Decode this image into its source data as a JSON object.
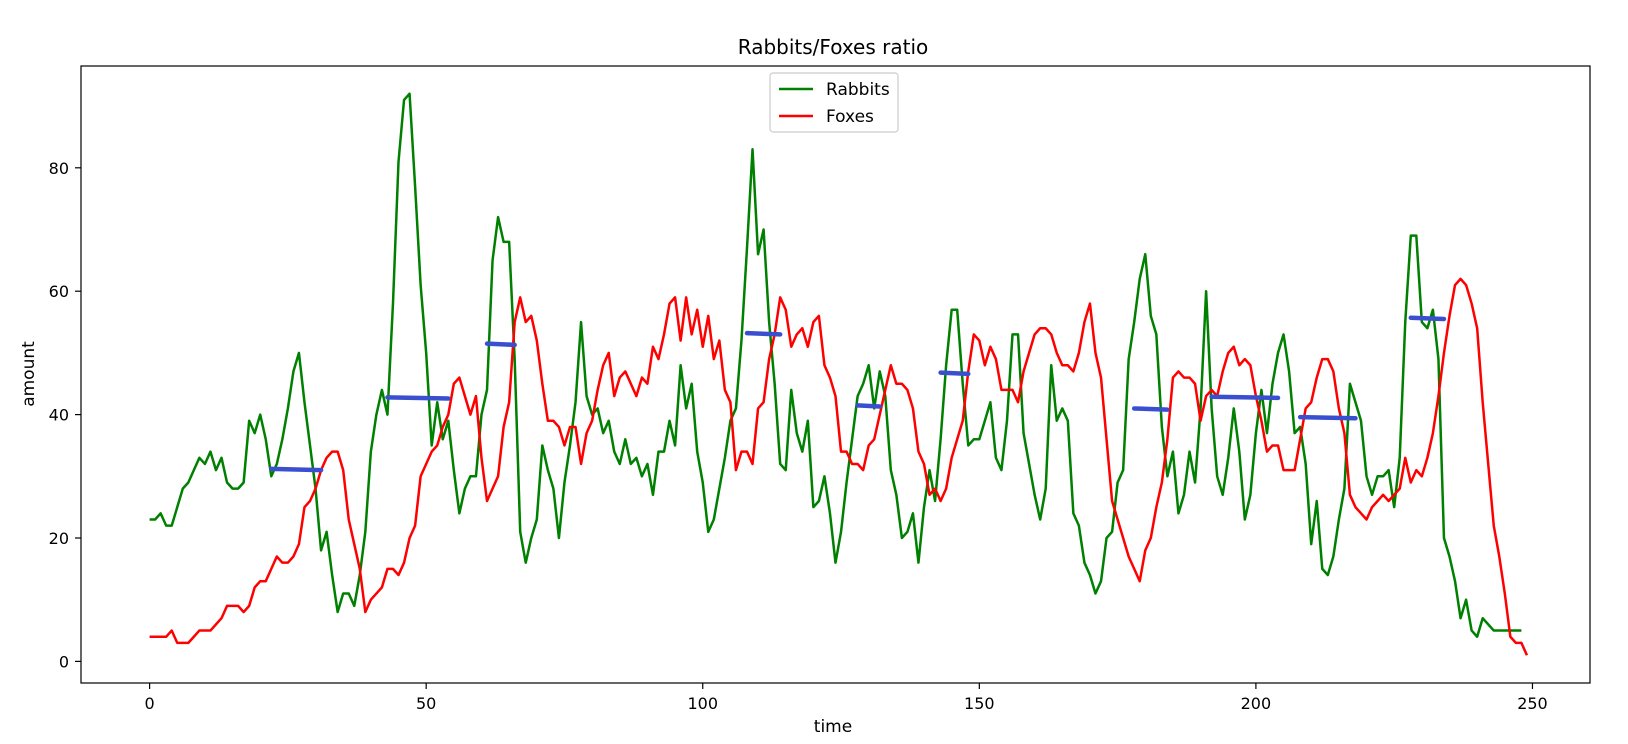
{
  "chart_data": {
    "type": "line",
    "title": "Rabbits/Foxes ratio",
    "xlabel": "time",
    "ylabel": "amount",
    "xlim": [
      -12.4,
      260.4
    ],
    "ylim": [
      -3.5,
      96.5
    ],
    "xticks": [
      0,
      50,
      100,
      150,
      200,
      250
    ],
    "yticks": [
      0,
      20,
      40,
      60,
      80
    ],
    "grid": false,
    "legend_placement": "upper center",
    "series": [
      {
        "name": "Rabbits",
        "color": "#008000",
        "values": [
          23,
          23,
          24,
          22,
          22,
          25,
          28,
          29,
          31,
          33,
          32,
          34,
          31,
          33,
          29,
          28,
          28,
          29,
          39,
          37,
          40,
          36,
          30,
          32,
          36,
          41,
          47,
          50,
          42,
          35,
          28,
          18,
          21,
          14,
          8,
          11,
          11,
          9,
          14,
          21,
          34,
          40,
          44,
          40,
          58,
          81,
          91,
          92,
          77,
          61,
          50,
          35,
          42,
          36,
          39,
          31,
          24,
          28,
          30,
          30,
          40,
          44,
          65,
          72,
          68,
          68,
          49,
          21,
          16,
          20,
          23,
          35,
          31,
          28,
          20,
          29,
          35,
          42,
          55,
          43,
          40,
          41,
          37,
          39,
          34,
          32,
          36,
          32,
          33,
          30,
          32,
          27,
          34,
          34,
          39,
          35,
          48,
          41,
          45,
          34,
          29,
          21,
          23,
          28,
          33,
          39,
          41,
          52,
          67,
          83,
          66,
          70,
          55,
          45,
          32,
          31,
          44,
          37,
          34,
          39,
          25,
          26,
          30,
          24,
          16,
          21,
          29,
          36,
          43,
          45,
          48,
          41,
          47,
          43,
          31,
          27,
          20,
          21,
          24,
          16,
          25,
          31,
          26,
          36,
          48,
          57,
          57,
          45,
          35,
          36,
          36,
          39,
          42,
          33,
          31,
          39,
          53,
          53,
          37,
          32,
          27,
          23,
          28,
          48,
          39,
          41,
          39,
          24,
          22,
          16,
          14,
          11,
          13,
          20,
          21,
          29,
          31,
          49,
          55,
          62,
          66,
          56,
          53,
          38,
          30,
          34,
          24,
          27,
          34,
          29,
          41,
          60,
          41,
          30,
          27,
          33,
          41,
          34,
          23,
          27,
          37,
          44,
          37,
          45,
          50,
          53,
          47,
          37,
          38,
          32,
          19,
          26,
          15,
          14,
          17,
          23,
          28,
          45,
          42,
          39,
          30,
          27,
          30,
          30,
          31,
          25,
          33,
          55,
          69,
          69,
          55,
          54,
          57,
          49,
          20,
          17,
          13,
          7,
          10,
          5,
          4,
          7,
          6,
          5,
          5,
          5,
          5,
          5,
          5
        ],
        "sampled_mean_marks": [
          {
            "x_range": [
              22,
              31
            ],
            "value": 31.2
          },
          {
            "x_range": [
              43,
              54
            ],
            "value": 42.8
          },
          {
            "x_range": [
              61,
              66
            ],
            "value": 51.5
          },
          {
            "x_range": [
              108,
              114
            ],
            "value": 53.2
          },
          {
            "x_range": [
              128,
              132
            ],
            "value": 41.5
          },
          {
            "x_range": [
              143,
              148
            ],
            "value": 46.8
          },
          {
            "x_range": [
              178,
              184
            ],
            "value": 41.0
          },
          {
            "x_range": [
              192,
              204
            ],
            "value": 42.9
          },
          {
            "x_range": [
              208,
              218
            ],
            "value": 39.6
          },
          {
            "x_range": [
              228,
              234
            ],
            "value": 55.7
          }
        ]
      },
      {
        "name": "Foxes",
        "color": "#ff0000",
        "values": [
          4,
          4,
          4,
          4,
          5,
          3,
          3,
          3,
          4,
          5,
          5,
          5,
          6,
          7,
          9,
          9,
          9,
          8,
          9,
          12,
          13,
          13,
          15,
          17,
          16,
          16,
          17,
          19,
          25,
          26,
          28,
          31,
          33,
          34,
          34,
          31,
          23,
          19,
          15,
          8,
          10,
          11,
          12,
          15,
          15,
          14,
          16,
          20,
          22,
          30,
          32,
          34,
          35,
          38,
          40,
          45,
          46,
          43,
          40,
          43,
          33,
          26,
          28,
          30,
          38,
          42,
          55,
          59,
          55,
          56,
          52,
          45,
          39,
          39,
          38,
          35,
          38,
          38,
          32,
          37,
          39,
          44,
          48,
          50,
          43,
          46,
          47,
          45,
          43,
          46,
          45,
          51,
          49,
          53,
          58,
          59,
          52,
          59,
          53,
          57,
          51,
          56,
          49,
          52,
          44,
          42,
          31,
          34,
          34,
          32,
          41,
          42,
          49,
          53,
          59,
          57,
          51,
          53,
          54,
          51,
          55,
          56,
          48,
          46,
          43,
          34,
          34,
          32,
          32,
          31,
          35,
          36,
          40,
          44,
          48,
          45,
          45,
          44,
          41,
          34,
          32,
          27,
          28,
          26,
          28,
          33,
          36,
          39,
          47,
          53,
          52,
          48,
          51,
          49,
          44,
          44,
          44,
          42,
          47,
          50,
          53,
          54,
          54,
          53,
          50,
          48,
          48,
          47,
          50,
          55,
          58,
          50,
          46,
          36,
          26,
          23,
          20,
          17,
          15,
          13,
          18,
          20,
          25,
          29,
          36,
          46,
          47,
          46,
          46,
          45,
          39,
          43,
          44,
          43,
          47,
          50,
          51,
          48,
          49,
          48,
          43,
          39,
          34,
          35,
          35,
          31,
          31,
          31,
          36,
          41,
          42,
          46,
          49,
          49,
          47,
          41,
          37,
          27,
          25,
          24,
          23,
          25,
          26,
          27,
          26,
          27,
          28,
          33,
          29,
          31,
          30,
          33,
          37,
          43,
          50,
          56,
          61,
          62,
          61,
          58,
          54,
          42,
          32,
          22,
          17,
          11,
          4,
          3,
          3,
          1
        ]
      }
    ]
  },
  "colors": {
    "rabbits": "#008000",
    "foxes": "#ff0000",
    "marks": "#3a4fcf",
    "axes": "#000000",
    "background": "#ffffff"
  }
}
